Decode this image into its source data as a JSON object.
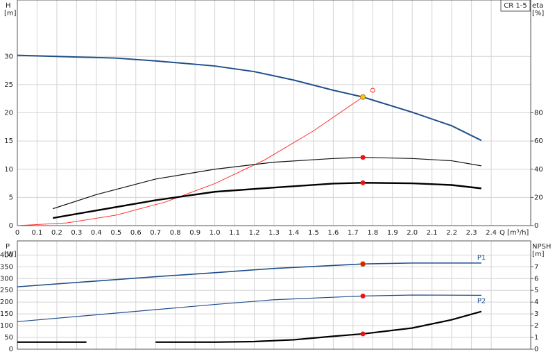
{
  "chart_data": [
    {
      "type": "line",
      "label_box": "CR 1-5",
      "ylabel": "H",
      "yunit": "[m]",
      "y2label": "eta",
      "y2unit": "[%]",
      "xlabel": "Q [m³/h]",
      "xlim": [
        0,
        2.6
      ],
      "xticks": [
        0,
        0.1,
        0.2,
        0.3,
        0.4,
        0.5,
        0.6,
        0.7,
        0.8,
        0.9,
        {
          "value": 1,
          "label": "1.0"
        },
        1.1,
        1.2,
        1.3,
        1.4,
        1.5,
        1.6,
        1.7,
        1.8,
        1.9,
        {
          "value": 2,
          "label": "2.0"
        },
        2.1,
        2.2,
        2.3,
        2.4
      ],
      "ylim": [
        0,
        40
      ],
      "yticks": [
        0,
        5,
        10,
        15,
        20,
        25,
        30
      ],
      "y2lim": [
        0,
        160
      ],
      "y2ticks": [
        0,
        20,
        40,
        60,
        80
      ],
      "series": [
        {
          "color": "#1f4e8c",
          "x": [
            0,
            0.5,
            0.7,
            1.0,
            1.2,
            1.4,
            1.6,
            1.75,
            2.0,
            2.2,
            2.35
          ],
          "values": [
            30.2,
            29.7,
            29.2,
            28.3,
            27.3,
            25.8,
            24.0,
            22.8,
            20.1,
            17.7,
            15.1
          ]
        },
        {
          "color": "#ff3030",
          "x": [
            0,
            0.25,
            0.5,
            0.75,
            1.0,
            1.25,
            1.5,
            1.75
          ],
          "values": [
            0,
            0.47,
            1.86,
            4.19,
            7.45,
            11.6,
            16.8,
            22.8
          ]
        },
        {
          "color": "#111111",
          "axis": "y2",
          "x": [
            0.18,
            0.4,
            0.7,
            1.0,
            1.3,
            1.6,
            1.75,
            2.0,
            2.2,
            2.35
          ],
          "values": [
            12,
            22,
            33,
            40,
            45,
            47.6,
            48.4,
            47.6,
            46,
            42.4
          ]
        },
        {
          "color": "#000000",
          "axis": "y2",
          "x": [
            0.18,
            0.7,
            1.0,
            1.3,
            1.6,
            1.75,
            2.0,
            2.2,
            2.35
          ],
          "values": [
            5.4,
            18,
            24,
            27,
            29.8,
            30.4,
            30,
            28.8,
            26.4
          ]
        }
      ],
      "points": [
        {
          "x": 1.75,
          "y": 22.8,
          "color": "#f5c518"
        },
        {
          "x": 1.8,
          "y": 24,
          "color": "#ff3030",
          "hollow": true
        },
        {
          "x": 1.75,
          "y": 48.4,
          "axis": "y2",
          "color": "#ee1111"
        },
        {
          "x": 1.75,
          "y": 30.4,
          "axis": "y2",
          "color": "#ee1111"
        }
      ]
    },
    {
      "type": "line",
      "ylabel": "P",
      "yunit": "[W]",
      "y2label": "NPSH",
      "y2unit": "[m]",
      "xlim": [
        0,
        2.6
      ],
      "ylim": [
        0,
        460
      ],
      "yticks": [
        0,
        50,
        100,
        150,
        200,
        250,
        300,
        350,
        400
      ],
      "y2lim": [
        0,
        9.2
      ],
      "y2ticks": [
        0,
        1,
        2,
        3,
        4,
        5,
        6,
        7
      ],
      "series": [
        {
          "name": "P1",
          "color": "#1f4e8c",
          "x": [
            0,
            0.7,
            1.0,
            1.3,
            1.75,
            2.0,
            2.35
          ],
          "values": [
            265,
            308,
            325,
            343,
            362,
            366,
            366
          ]
        },
        {
          "name": "P2",
          "color": "#1f4e8c",
          "x": [
            0,
            0.7,
            1.0,
            1.3,
            1.75,
            2.0,
            2.35
          ],
          "values": [
            117,
            168,
            190,
            210,
            226,
            230,
            229
          ]
        },
        {
          "color": "#000000",
          "axis": "y2",
          "x": [
            0,
            0.35,
            0.5,
            0.7,
            1.0,
            1.2,
            1.4,
            1.6,
            1.75,
            2.0,
            2.2,
            2.35
          ],
          "values": [
            0.6,
            0.6,
            null,
            0.6,
            0.6,
            0.65,
            0.8,
            1.1,
            1.3,
            1.8,
            2.5,
            3.2
          ]
        }
      ],
      "points": [
        {
          "x": 1.75,
          "y": 362,
          "color": "#ee1111"
        },
        {
          "x": 1.75,
          "y": 226,
          "color": "#ee1111"
        },
        {
          "x": 1.75,
          "y": 1.3,
          "axis": "y2",
          "color": "#ee1111"
        }
      ]
    }
  ]
}
